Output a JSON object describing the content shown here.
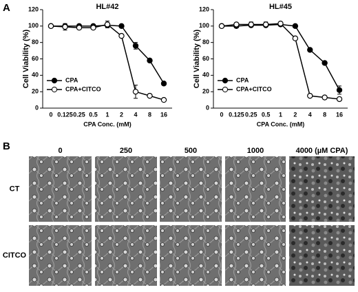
{
  "panel_a_label": "A",
  "chart_data": [
    {
      "type": "line",
      "title": "HL#42",
      "x_label": "CPA Conc. (mM)",
      "y_label": "Cell Viability (%)",
      "categories": [
        "0",
        "0.125",
        "0.25",
        "0.5",
        "1",
        "2",
        "4",
        "8",
        "16"
      ],
      "ylim": [
        0,
        120
      ],
      "yticks": [
        0,
        20,
        40,
        60,
        80,
        100,
        120
      ],
      "legend": "lower left",
      "series": [
        {
          "name": "CPA",
          "color": "#000000",
          "marker_fill": "#000000",
          "values": [
            100,
            100,
            100,
            100,
            101,
            100,
            76,
            58,
            30
          ],
          "errors": [
            1,
            2,
            2,
            1,
            3,
            2,
            4,
            2,
            2
          ]
        },
        {
          "name": "CPA+CITCO",
          "color": "#000000",
          "marker_fill": "#ffffff",
          "values": [
            100,
            99,
            98,
            98,
            102,
            88,
            20,
            15,
            10
          ],
          "errors": [
            1,
            4,
            2,
            1,
            4,
            2,
            8,
            2,
            2
          ]
        }
      ]
    },
    {
      "type": "line",
      "title": "HL#45",
      "x_label": "CPA Conc. (mM)",
      "y_label": "Cell Viability (%)",
      "categories": [
        "0",
        "0.125",
        "0.25",
        "0.5",
        "1",
        "2",
        "4",
        "8",
        "16"
      ],
      "ylim": [
        0,
        120
      ],
      "yticks": [
        0,
        20,
        40,
        60,
        80,
        100,
        120
      ],
      "legend": "lower left",
      "series": [
        {
          "name": "CPA",
          "color": "#000000",
          "marker_fill": "#000000",
          "values": [
            100,
            100,
            101,
            101,
            102,
            100,
            71,
            55,
            22
          ],
          "errors": [
            1,
            2,
            2,
            2,
            2,
            2,
            2,
            2,
            5
          ]
        },
        {
          "name": "CPA+CITCO",
          "color": "#000000",
          "marker_fill": "#ffffff",
          "values": [
            100,
            102,
            102,
            102,
            103,
            85,
            15,
            13,
            11
          ],
          "errors": [
            1,
            2,
            3,
            3,
            2,
            2,
            2,
            2,
            2
          ]
        }
      ]
    }
  ],
  "panel_b": {
    "label": "B",
    "columns": [
      "0",
      "250",
      "500",
      "1000",
      "4000 (µM CPA)"
    ],
    "rows": [
      "CT",
      "CITCO"
    ]
  }
}
